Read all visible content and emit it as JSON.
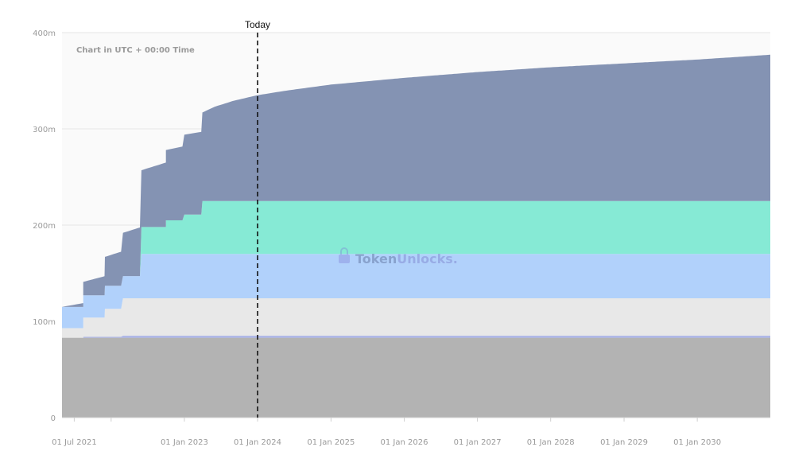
{
  "chart_data": {
    "type": "area",
    "stacked": true,
    "note": "Chart in UTC + 00:00 Time",
    "today_label": "Today",
    "today_date": "2024-01-01",
    "watermark": {
      "part1": "Token",
      "part2": "Unlocks."
    },
    "x_range": [
      "2021-05-01",
      "2030-12-31"
    ],
    "ylim": [
      0,
      400000000
    ],
    "y_ticks": [
      {
        "value": 0,
        "label": "0"
      },
      {
        "value": 100000000,
        "label": "100m"
      },
      {
        "value": 200000000,
        "label": "200m"
      },
      {
        "value": 300000000,
        "label": "300m"
      },
      {
        "value": 400000000,
        "label": "400m"
      }
    ],
    "x_ticks": [
      {
        "date": "2021-07-01",
        "label": "01 Jul 2021"
      },
      {
        "date": "2023-01-01",
        "label": "01 Jan 2023"
      },
      {
        "date": "2024-01-01",
        "label": "01 Jan 2024"
      },
      {
        "date": "2025-01-01",
        "label": "01 Jan 2025"
      },
      {
        "date": "2026-01-01",
        "label": "01 Jan 2026"
      },
      {
        "date": "2027-01-01",
        "label": "01 Jan 2027"
      },
      {
        "date": "2028-01-01",
        "label": "01 Jan 2028"
      },
      {
        "date": "2029-01-01",
        "label": "01 Jan 2029"
      },
      {
        "date": "2030-01-01",
        "label": "01 Jan 2030"
      }
    ],
    "x_minor_ticks": [
      "2022-01-01"
    ],
    "grid": true,
    "legend": "none",
    "series": [
      {
        "color": "#b3b3b3",
        "points": [
          [
            "2021-05-01",
            83000000
          ],
          [
            "2030-12-31",
            83000000
          ]
        ]
      },
      {
        "color": "#a9b2e6",
        "points": [
          [
            "2021-05-01",
            0
          ],
          [
            "2021-08-15",
            0.5
          ],
          [
            "2021-08-15",
            1000000
          ],
          [
            "2022-03-01",
            1000000
          ],
          [
            "2022-03-01",
            2000000
          ],
          [
            "2030-12-31",
            2000000
          ]
        ]
      },
      {
        "color": "#e8e8e8",
        "points": [
          [
            "2021-05-01",
            10000000
          ],
          [
            "2021-08-15",
            10000000
          ],
          [
            "2021-08-15",
            20000000
          ],
          [
            "2021-12-01",
            20000000
          ],
          [
            "2021-12-01",
            29000000
          ],
          [
            "2022-03-01",
            29000000
          ],
          [
            "2022-03-01",
            39000000
          ],
          [
            "2030-12-31",
            39000000
          ]
        ]
      },
      {
        "color": "#b1d1fb",
        "points": [
          [
            "2021-05-01",
            22000000
          ],
          [
            "2021-08-15",
            22000000
          ],
          [
            "2021-08-15",
            23000000
          ],
          [
            "2021-12-01",
            23000000
          ],
          [
            "2021-12-01",
            24000000
          ],
          [
            "2022-03-01",
            24000000
          ],
          [
            "2022-03-01",
            23000000
          ],
          [
            "2022-06-01",
            23000000
          ],
          [
            "2022-06-01",
            46000000
          ],
          [
            "2030-12-31",
            46000000
          ]
        ]
      },
      {
        "color": "#86ead5",
        "points": [
          [
            "2021-05-01",
            0
          ],
          [
            "2022-06-01",
            0
          ],
          [
            "2022-06-01",
            28000000
          ],
          [
            "2022-10-01",
            28000000
          ],
          [
            "2022-10-01",
            35000000
          ],
          [
            "2023-01-01",
            35000000
          ],
          [
            "2023-01-01",
            41000000
          ],
          [
            "2023-04-01",
            41000000
          ],
          [
            "2023-04-01",
            47000000
          ],
          [
            "2023-04-01",
            55000000
          ],
          [
            "2030-12-31",
            55000000
          ]
        ]
      },
      {
        "color": "#8493b3",
        "points": [
          [
            "2021-05-01",
            0
          ],
          [
            "2021-08-15",
            4000000
          ],
          [
            "2021-08-15",
            14000000
          ],
          [
            "2021-12-01",
            20000000
          ],
          [
            "2021-12-01",
            30000000
          ],
          [
            "2022-03-01",
            36000000
          ],
          [
            "2022-03-01",
            45000000
          ],
          [
            "2022-06-01",
            51000000
          ],
          [
            "2022-06-01",
            59000000
          ],
          [
            "2022-10-01",
            67000000
          ],
          [
            "2022-10-01",
            73000000
          ],
          [
            "2023-01-01",
            77000000
          ],
          [
            "2023-01-01",
            83000000
          ],
          [
            "2023-04-01",
            86000000
          ],
          [
            "2023-04-01",
            92000000
          ],
          [
            "2023-06-01",
            98000000
          ],
          [
            "2023-09-01",
            104000000
          ],
          [
            "2024-01-01",
            110000000
          ],
          [
            "2024-06-01",
            115000000
          ],
          [
            "2025-01-01",
            121000000
          ],
          [
            "2026-01-01",
            128000000
          ],
          [
            "2027-01-01",
            134000000
          ],
          [
            "2028-01-01",
            139000000
          ],
          [
            "2029-01-01",
            143000000
          ],
          [
            "2030-01-01",
            147000000
          ],
          [
            "2030-12-31",
            152000000
          ]
        ]
      }
    ]
  }
}
